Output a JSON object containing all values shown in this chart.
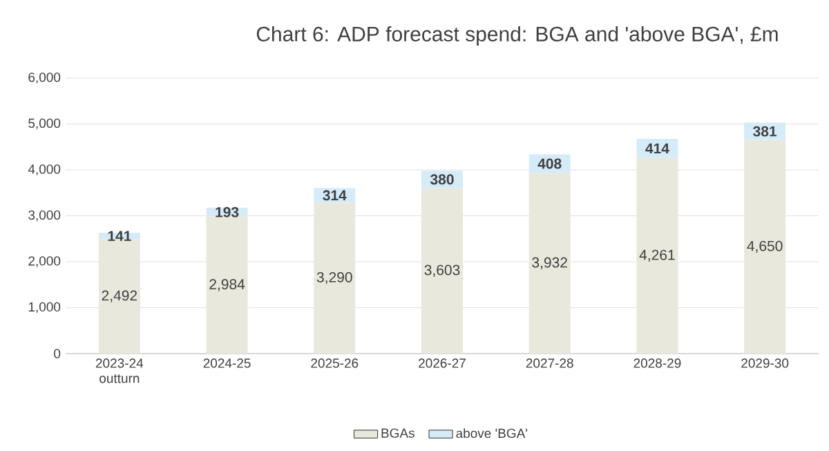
{
  "chart_data": {
    "type": "bar",
    "stacked": true,
    "title": "Chart 6: ADP forecast spend: BGA and 'above BGA', £m",
    "categories": [
      "2023-24 outturn",
      "2024-25",
      "2025-26",
      "2026-27",
      "2027-28",
      "2028-29",
      "2029-30"
    ],
    "series": [
      {
        "name": "BGAs",
        "color": "#e8e8dc",
        "values": [
          2492,
          2984,
          3290,
          3603,
          3932,
          4261,
          4650
        ],
        "value_labels": [
          "2,492",
          "2,984",
          "3,290",
          "3,603",
          "3,932",
          "4,261",
          "4,650"
        ]
      },
      {
        "name": "above 'BGA'",
        "color": "#d6ebf8",
        "values": [
          141,
          193,
          314,
          380,
          408,
          414,
          381
        ],
        "value_labels": [
          "141",
          "193",
          "314",
          "380",
          "408",
          "414",
          "381"
        ]
      }
    ],
    "ylim": [
      0,
      6000
    ],
    "yticks": [
      0,
      {
        "value": 1000,
        "label": "1,000"
      },
      {
        "value": 2000,
        "label": "2,000"
      },
      {
        "value": 3000,
        "label": "3,000"
      },
      {
        "value": 4000,
        "label": "4,000"
      },
      {
        "value": 5000,
        "label": "5,000"
      },
      {
        "value": 6000,
        "label": "6,000"
      }
    ],
    "grid": "y",
    "legend": "bottom"
  }
}
